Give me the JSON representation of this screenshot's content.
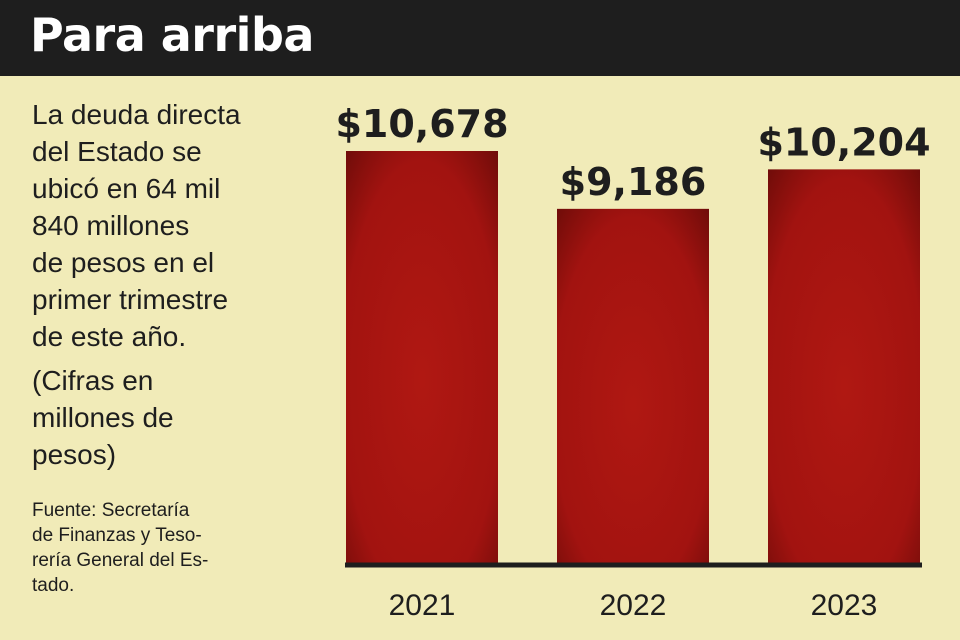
{
  "header": {
    "title": "Para arriba"
  },
  "text": {
    "description_lines": [
      "La deuda directa",
      "del Estado se",
      "ubicó en 64 mil",
      "840 millones",
      "de pesos en el",
      "primer trimestre",
      "de este año."
    ],
    "note_lines": [
      "(Cifras en",
      "millones de",
      "pesos)"
    ],
    "source_lines": [
      "Fuente: Secretaría",
      "de Finanzas y Teso-",
      "rería General del Es-",
      "tado."
    ]
  },
  "colors": {
    "background": "#f1ebb8",
    "header": "#1e1e1e",
    "bar": "#a81410",
    "text": "#1e1e1e"
  },
  "chart_data": {
    "type": "bar",
    "categories": [
      "2021",
      "2022",
      "2023"
    ],
    "values": [
      10678,
      9186,
      10204
    ],
    "value_labels": [
      "$10,678",
      "$9,186",
      "$10,204"
    ],
    "title": "",
    "xlabel": "",
    "ylabel": "",
    "ylim": [
      0,
      10678
    ],
    "grid": false,
    "legend": "none"
  }
}
